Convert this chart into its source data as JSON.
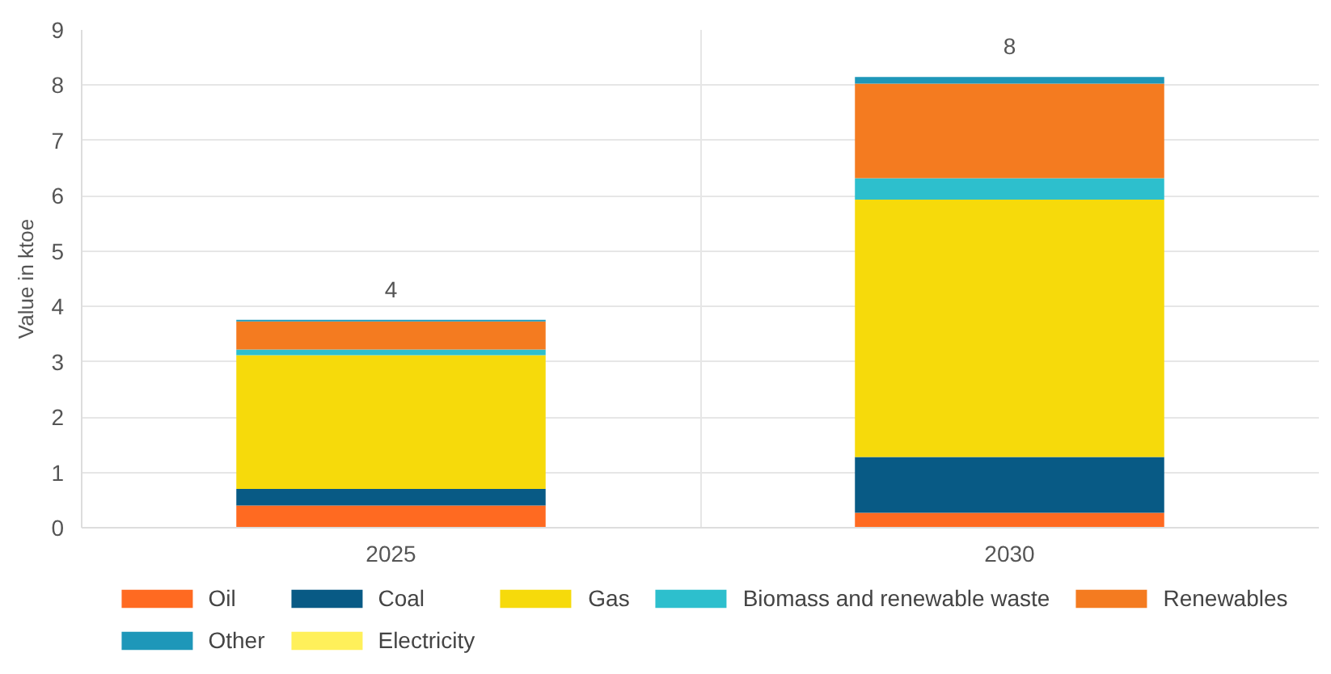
{
  "chart_data": {
    "type": "bar",
    "stacked": true,
    "ylabel": "Value in ktoe",
    "categories": [
      "2025",
      "2030"
    ],
    "series": [
      {
        "name": "Oil",
        "color": "#ff6a21",
        "values": [
          0.4,
          0.27
        ]
      },
      {
        "name": "Coal",
        "color": "#085a85",
        "values": [
          0.3,
          1.01
        ]
      },
      {
        "name": "Gas",
        "color": "#f6da0b",
        "values": [
          2.42,
          4.65
        ]
      },
      {
        "name": "Biomass and renewable waste",
        "color": "#2dbfcd",
        "values": [
          0.1,
          0.39
        ]
      },
      {
        "name": "Renewables",
        "color": "#f47b20",
        "values": [
          0.51,
          1.71
        ]
      },
      {
        "name": "Other",
        "color": "#1e97b9",
        "values": [
          0.03,
          0.12
        ]
      },
      {
        "name": "Electricity",
        "color": "#fff05a",
        "values": [
          0,
          0
        ]
      }
    ],
    "totals": [
      "4",
      "8"
    ],
    "ylim": [
      0,
      9
    ],
    "yticks": [
      0,
      1,
      2,
      3,
      4,
      5,
      6,
      7,
      8,
      9
    ],
    "grid": true,
    "legend": "bottom"
  }
}
